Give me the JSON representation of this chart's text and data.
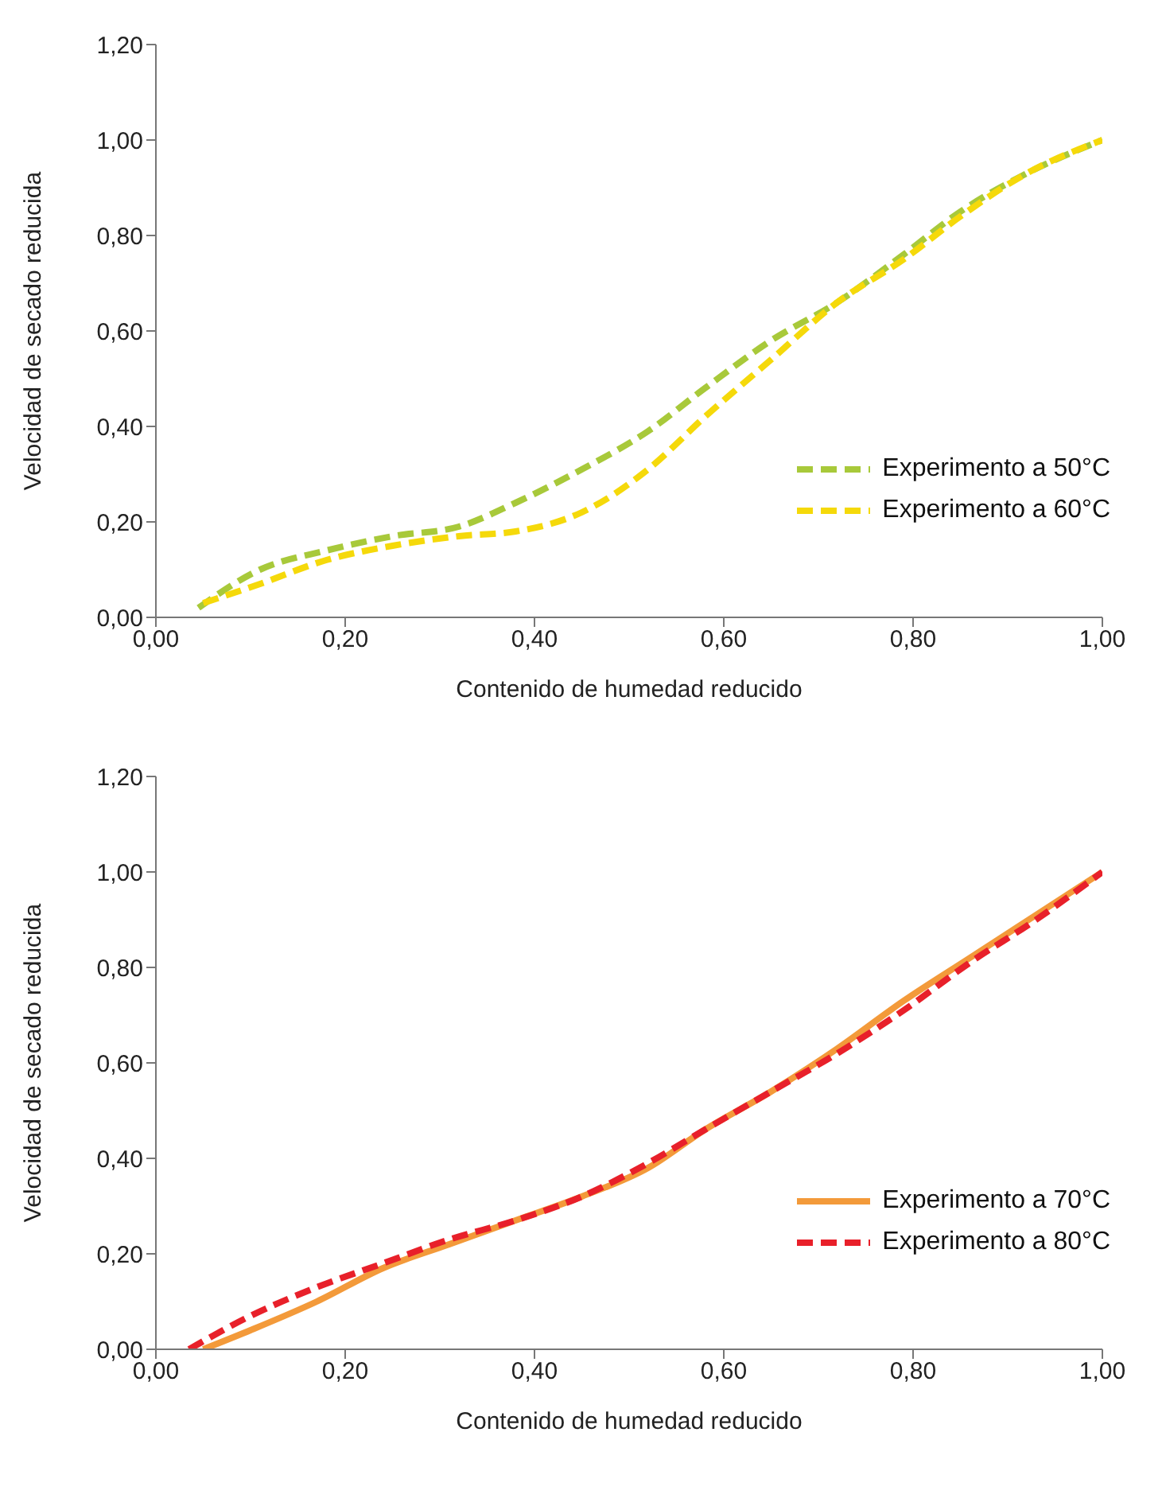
{
  "chart_data": [
    {
      "type": "line",
      "xlabel": "Contenido de  humedad reducido",
      "ylabel": "Velocidad de secado reducida",
      "xlim": [
        0,
        1
      ],
      "ylim": [
        0,
        1.2
      ],
      "xticks": [
        {
          "value": 0,
          "label": "0,00"
        },
        {
          "value": 0.2,
          "label": "0,20"
        },
        {
          "value": 0.4,
          "label": "0,40"
        },
        {
          "value": 0.6,
          "label": "0,60"
        },
        {
          "value": 0.8,
          "label": "0,80"
        },
        {
          "value": 1,
          "label": "1,00"
        }
      ],
      "yticks": [
        {
          "value": 0,
          "label": "0,00"
        },
        {
          "value": 0.2,
          "label": "0,20"
        },
        {
          "value": 0.4,
          "label": "0,40"
        },
        {
          "value": 0.6,
          "label": "0,60"
        },
        {
          "value": 0.8,
          "label": "0,80"
        },
        {
          "value": 1,
          "label": "1,00"
        },
        {
          "value": 1.2,
          "label": "1,20"
        }
      ],
      "grid": false,
      "legend": "bottom right",
      "marker": "none",
      "series": [
        {
          "name": "Experimento a 50°C",
          "color": "#a8c93a",
          "line_style": "dashed",
          "x": [
            0.045,
            0.11,
            0.18,
            0.25,
            0.32,
            0.38,
            0.45,
            0.52,
            0.58,
            0.65,
            0.72,
            0.79,
            0.85,
            0.92,
            1
          ],
          "values": [
            0.02,
            0.1,
            0.14,
            0.17,
            0.19,
            0.24,
            0.31,
            0.39,
            0.48,
            0.58,
            0.66,
            0.76,
            0.85,
            0.93,
            1
          ]
        },
        {
          "name": "Experimento a 60°C",
          "color": "#f5d90a",
          "line_style": "dashed",
          "x": [
            0.05,
            0.11,
            0.18,
            0.25,
            0.32,
            0.38,
            0.45,
            0.52,
            0.58,
            0.65,
            0.72,
            0.79,
            0.85,
            0.92,
            1
          ],
          "values": [
            0.03,
            0.07,
            0.12,
            0.15,
            0.17,
            0.18,
            0.22,
            0.31,
            0.42,
            0.54,
            0.66,
            0.75,
            0.84,
            0.93,
            1
          ]
        }
      ]
    },
    {
      "type": "line",
      "xlabel": "Contenido de  humedad reducido",
      "ylabel": "Velocidad de secado reducida",
      "xlim": [
        0,
        1
      ],
      "ylim": [
        0,
        1.2
      ],
      "xticks": [
        {
          "value": 0,
          "label": "0,00"
        },
        {
          "value": 0.2,
          "label": "0,20"
        },
        {
          "value": 0.4,
          "label": "0,40"
        },
        {
          "value": 0.6,
          "label": "0,60"
        },
        {
          "value": 0.8,
          "label": "0,80"
        },
        {
          "value": 1,
          "label": "1,00"
        }
      ],
      "yticks": [
        {
          "value": 0,
          "label": "0,00"
        },
        {
          "value": 0.2,
          "label": "0,20"
        },
        {
          "value": 0.4,
          "label": "0,40"
        },
        {
          "value": 0.6,
          "label": "0,60"
        },
        {
          "value": 0.8,
          "label": "0,80"
        },
        {
          "value": 1,
          "label": "1,00"
        },
        {
          "value": 1.2,
          "label": "1,20"
        }
      ],
      "grid": false,
      "legend": "bottom right",
      "marker": "none",
      "series": [
        {
          "name": "Experimento a 70°C",
          "color": "#f39a3a",
          "line_style": "solid",
          "x": [
            0.05,
            0.1,
            0.17,
            0.24,
            0.31,
            0.38,
            0.45,
            0.52,
            0.58,
            0.65,
            0.72,
            0.79,
            0.86,
            0.93,
            1
          ],
          "values": [
            0,
            0.04,
            0.1,
            0.17,
            0.22,
            0.27,
            0.32,
            0.38,
            0.46,
            0.54,
            0.63,
            0.73,
            0.82,
            0.91,
            1
          ]
        },
        {
          "name": "Experimento a 80°C",
          "color": "#e8202a",
          "line_style": "dashed",
          "x": [
            0.035,
            0.1,
            0.17,
            0.24,
            0.31,
            0.38,
            0.45,
            0.52,
            0.58,
            0.65,
            0.72,
            0.79,
            0.86,
            0.93,
            1
          ],
          "values": [
            0,
            0.07,
            0.13,
            0.18,
            0.23,
            0.27,
            0.32,
            0.39,
            0.46,
            0.54,
            0.62,
            0.71,
            0.81,
            0.9,
            1
          ]
        }
      ]
    }
  ]
}
